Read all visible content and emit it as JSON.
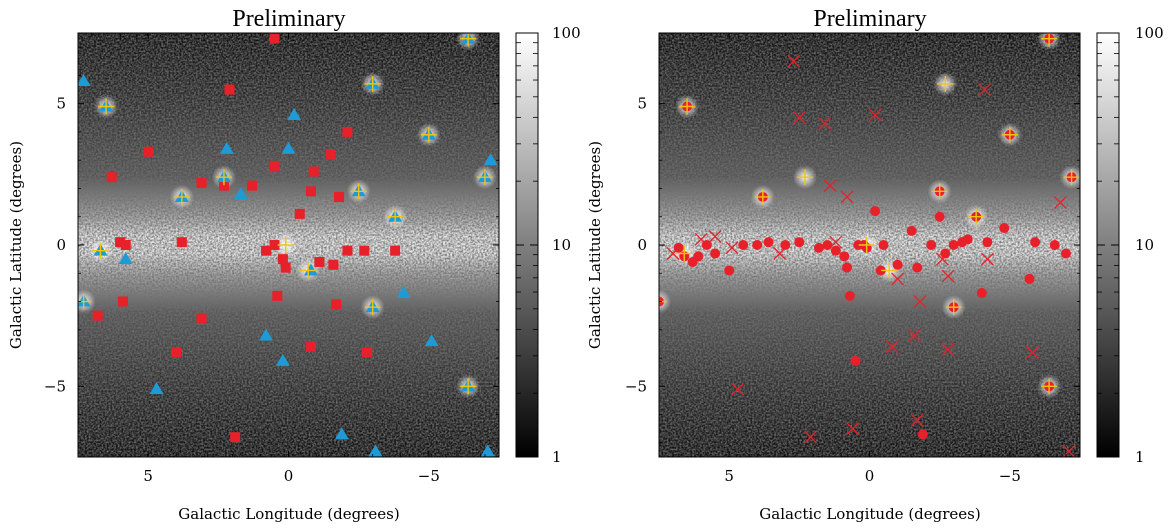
{
  "chart_data": [
    {
      "type": "scatter",
      "title": "Preliminary",
      "xlabel": "Galactic Longitude (degrees)",
      "ylabel": "Galactic Latitude (degrees)",
      "xlim": [
        7.5,
        -7.5
      ],
      "ylim": [
        -7.5,
        7.5
      ],
      "x_ticks": [
        {
          "v": 5,
          "label": "5"
        },
        {
          "v": 0,
          "label": "0"
        },
        {
          "v": -5,
          "label": "−5"
        }
      ],
      "y_ticks": [
        {
          "v": 5,
          "label": "5"
        },
        {
          "v": 0,
          "label": "0"
        },
        {
          "v": -5,
          "label": "−5"
        }
      ],
      "background": "grayscale counts map, log scale 1–100",
      "colorbar": {
        "scale": "log",
        "range": [
          1,
          100
        ],
        "tick_labels": [
          "100",
          "10",
          "1"
        ]
      },
      "series": [
        {
          "marker": "square",
          "color": "#e8202a",
          "points": [
            [
              0.5,
              7.3
            ],
            [
              2.1,
              5.5
            ],
            [
              5.0,
              3.3
            ],
            [
              6.3,
              2.4
            ],
            [
              3.1,
              2.2
            ],
            [
              2.3,
              2.1
            ],
            [
              1.3,
              2.1
            ],
            [
              0.5,
              2.8
            ],
            [
              -0.9,
              2.6
            ],
            [
              -1.5,
              3.2
            ],
            [
              -2.1,
              4.0
            ],
            [
              -0.8,
              1.9
            ],
            [
              -0.4,
              1.1
            ],
            [
              -1.8,
              1.7
            ],
            [
              6.0,
              0.1
            ],
            [
              5.8,
              0.0
            ],
            [
              3.8,
              0.1
            ],
            [
              0.8,
              -0.2
            ],
            [
              0.5,
              0.0
            ],
            [
              0.2,
              -0.5
            ],
            [
              0.1,
              -0.8
            ],
            [
              -1.1,
              -0.6
            ],
            [
              -1.6,
              -0.7
            ],
            [
              -2.1,
              -0.2
            ],
            [
              -2.7,
              -0.2
            ],
            [
              -3.8,
              -0.2
            ],
            [
              5.9,
              -2.0
            ],
            [
              6.8,
              -2.5
            ],
            [
              4.0,
              -3.8
            ],
            [
              3.1,
              -2.6
            ],
            [
              0.4,
              -1.8
            ],
            [
              -1.7,
              -2.1
            ],
            [
              -0.8,
              -3.6
            ],
            [
              -2.8,
              -3.8
            ],
            [
              1.9,
              -6.8
            ]
          ]
        },
        {
          "marker": "triangle",
          "color": "#1e9bd7",
          "points": [
            [
              7.3,
              5.8
            ],
            [
              6.5,
              4.9
            ],
            [
              -0.2,
              4.6
            ],
            [
              2.2,
              3.4
            ],
            [
              0.0,
              3.4
            ],
            [
              2.3,
              2.4
            ],
            [
              3.8,
              1.7
            ],
            [
              1.7,
              1.8
            ],
            [
              -2.5,
              1.9
            ],
            [
              -3.8,
              1.0
            ],
            [
              -5.0,
              3.9
            ],
            [
              -7.0,
              2.4
            ],
            [
              -7.2,
              3.0
            ],
            [
              -6.4,
              7.3
            ],
            [
              -3.0,
              5.7
            ],
            [
              6.7,
              -0.2
            ],
            [
              5.8,
              -0.5
            ],
            [
              0.8,
              -3.2
            ],
            [
              0.2,
              -4.1
            ],
            [
              -0.8,
              -0.9
            ],
            [
              -3.0,
              -2.2
            ],
            [
              -4.1,
              -1.7
            ],
            [
              -5.1,
              -3.4
            ],
            [
              -6.4,
              -5.0
            ],
            [
              7.3,
              -2.0
            ],
            [
              4.7,
              -5.1
            ],
            [
              -1.9,
              -6.7
            ],
            [
              -3.1,
              -7.3
            ],
            [
              -7.1,
              -7.3
            ]
          ]
        },
        {
          "marker": "plus",
          "color": "#f1c40f",
          "points": [
            [
              6.5,
              4.9
            ],
            [
              3.8,
              1.7
            ],
            [
              2.3,
              2.4
            ],
            [
              -2.5,
              1.9
            ],
            [
              -3.8,
              1.0
            ],
            [
              -3.0,
              5.7
            ],
            [
              -5.0,
              3.9
            ],
            [
              -7.0,
              2.4
            ],
            [
              -6.4,
              7.3
            ],
            [
              0.1,
              0.0
            ],
            [
              -0.7,
              -0.9
            ],
            [
              6.7,
              -0.2
            ],
            [
              -3.0,
              -2.2
            ],
            [
              -6.4,
              -5.0
            ],
            [
              7.3,
              -2.0
            ]
          ]
        }
      ]
    },
    {
      "type": "scatter",
      "title": "Preliminary",
      "xlabel": "Galactic Longitude (degrees)",
      "ylabel": "Galactic Latitude (degrees)",
      "xlim": [
        7.5,
        -7.5
      ],
      "ylim": [
        -7.5,
        7.5
      ],
      "x_ticks": [
        {
          "v": 5,
          "label": "5"
        },
        {
          "v": 0,
          "label": "0"
        },
        {
          "v": -5,
          "label": "−5"
        }
      ],
      "y_ticks": [
        {
          "v": 5,
          "label": "5"
        },
        {
          "v": 0,
          "label": "0"
        },
        {
          "v": -5,
          "label": "−5"
        }
      ],
      "background": "grayscale counts map, log scale 1–100",
      "colorbar": {
        "scale": "log",
        "range": [
          1,
          100
        ],
        "tick_labels": [
          "100",
          "10",
          "1"
        ]
      },
      "series": [
        {
          "marker": "circle",
          "color": "#e8202a",
          "points": [
            [
              6.5,
              4.9
            ],
            [
              3.8,
              1.7
            ],
            [
              -2.5,
              1.9
            ],
            [
              -3.8,
              1.0
            ],
            [
              -7.2,
              2.4
            ],
            [
              -5.0,
              3.9
            ],
            [
              -6.4,
              7.3
            ],
            [
              7.5,
              -2.0
            ],
            [
              -3.0,
              -2.2
            ],
            [
              -6.4,
              -5.0
            ],
            [
              -0.4,
              -0.9
            ],
            [
              0.1,
              -0.1
            ],
            [
              6.8,
              -0.1
            ],
            [
              6.6,
              -0.4
            ],
            [
              6.3,
              -0.6
            ],
            [
              6.1,
              -0.4
            ],
            [
              5.8,
              0.0
            ],
            [
              5.5,
              -0.3
            ],
            [
              5.0,
              -0.9
            ],
            [
              4.5,
              0.0
            ],
            [
              4.0,
              0.0
            ],
            [
              3.6,
              0.1
            ],
            [
              3.0,
              0.0
            ],
            [
              2.5,
              0.1
            ],
            [
              1.8,
              -0.1
            ],
            [
              1.5,
              0.0
            ],
            [
              1.2,
              -0.2
            ],
            [
              0.9,
              -0.4
            ],
            [
              0.8,
              -0.8
            ],
            [
              0.7,
              -1.8
            ],
            [
              0.4,
              0.0
            ],
            [
              0.2,
              0.0
            ],
            [
              -0.2,
              1.2
            ],
            [
              -0.5,
              0.0
            ],
            [
              -1.0,
              -0.7
            ],
            [
              -1.5,
              0.5
            ],
            [
              -1.7,
              -0.8
            ],
            [
              -2.2,
              0.0
            ],
            [
              -2.5,
              1.0
            ],
            [
              -2.7,
              -0.3
            ],
            [
              -3.0,
              0.0
            ],
            [
              -3.3,
              0.1
            ],
            [
              -3.5,
              0.2
            ],
            [
              -4.0,
              -1.7
            ],
            [
              -4.2,
              0.1
            ],
            [
              -4.8,
              0.6
            ],
            [
              -5.7,
              -1.2
            ],
            [
              -5.9,
              0.1
            ],
            [
              -6.6,
              0.0
            ],
            [
              -7.0,
              -0.3
            ],
            [
              0.5,
              -4.1
            ],
            [
              -1.9,
              -6.7
            ]
          ]
        },
        {
          "marker": "cross",
          "color": "#e8202a",
          "points": [
            [
              2.7,
              6.5
            ],
            [
              2.5,
              4.5
            ],
            [
              1.6,
              4.3
            ],
            [
              -0.2,
              4.6
            ],
            [
              -4.1,
              5.5
            ],
            [
              1.4,
              2.1
            ],
            [
              0.8,
              1.7
            ],
            [
              6.0,
              0.2
            ],
            [
              5.5,
              0.3
            ],
            [
              4.9,
              -0.1
            ],
            [
              3.2,
              -0.3
            ],
            [
              1.2,
              0.1
            ],
            [
              -2.6,
              -0.5
            ],
            [
              -2.8,
              -1.1
            ],
            [
              -4.2,
              -0.5
            ],
            [
              -1.0,
              -1.2
            ],
            [
              -1.8,
              -2.0
            ],
            [
              -1.6,
              -3.2
            ],
            [
              -0.8,
              -3.6
            ],
            [
              -2.8,
              -3.7
            ],
            [
              -5.8,
              -3.8
            ],
            [
              4.7,
              -5.1
            ],
            [
              2.1,
              -6.8
            ],
            [
              0.6,
              -6.5
            ],
            [
              -1.7,
              -6.2
            ],
            [
              -6.8,
              1.5
            ],
            [
              -7.1,
              -7.3
            ],
            [
              7.0,
              -0.3
            ]
          ]
        },
        {
          "marker": "plus",
          "color": "#f1c40f",
          "points": [
            [
              6.5,
              4.9
            ],
            [
              3.8,
              1.7
            ],
            [
              2.3,
              2.4
            ],
            [
              -2.5,
              1.9
            ],
            [
              -3.8,
              1.0
            ],
            [
              -2.7,
              5.7
            ],
            [
              -5.0,
              3.9
            ],
            [
              -7.2,
              2.4
            ],
            [
              -6.4,
              7.3
            ],
            [
              0.1,
              0.0
            ],
            [
              -0.7,
              -0.9
            ],
            [
              6.6,
              -0.3
            ],
            [
              -3.0,
              -2.2
            ],
            [
              -6.4,
              -5.0
            ],
            [
              7.5,
              -2.0
            ]
          ]
        }
      ]
    }
  ]
}
